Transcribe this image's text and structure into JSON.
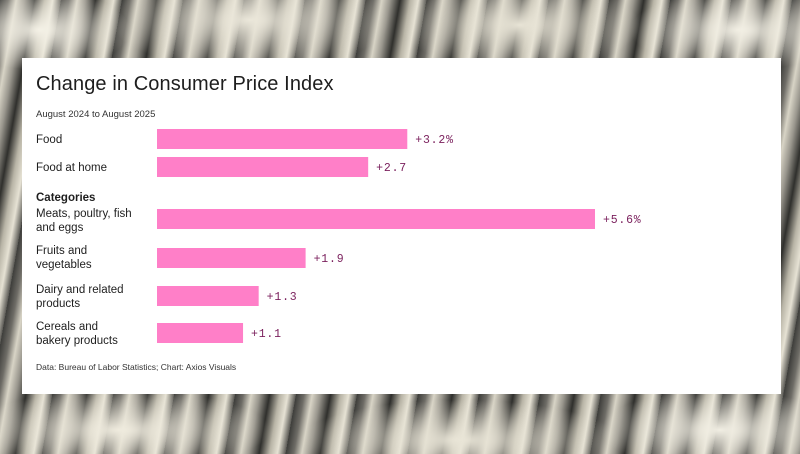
{
  "title": "Change in Consumer Price Index",
  "subtitle": "August 2024 to August 2025",
  "section_label": "Categories",
  "source": "Data: Bureau of Labor Statistics; Chart: Axios Visuals",
  "colors": {
    "bar": "#ff7fc8",
    "value_text": "#7a1f5c"
  },
  "chart_data": {
    "type": "bar",
    "orientation": "horizontal",
    "title": "Change in Consumer Price Index",
    "subtitle": "August 2024 to August 2025",
    "categories": [
      "Food",
      "Food at home",
      "Meats, poultry, fish and eggs",
      "Fruits and vegetables",
      "Dairy and related products",
      "Cereals and bakery products"
    ],
    "values": [
      3.2,
      2.7,
      5.6,
      1.9,
      1.3,
      1.1
    ],
    "data_labels": [
      "+3.2%",
      "+2.7",
      "+5.6%",
      "+1.9",
      "+1.3",
      "+1.1"
    ],
    "unit": "%",
    "xlim": [
      0,
      5.6
    ],
    "grid": false,
    "legend": "none"
  },
  "rows": [
    {
      "label_lines": [
        "Food"
      ]
    },
    {
      "label_lines": [
        "Food at home"
      ]
    },
    {
      "label_lines": [
        "Meats, poultry, fish",
        "and eggs"
      ]
    },
    {
      "label_lines": [
        "Fruits and",
        "vegetables"
      ]
    },
    {
      "label_lines": [
        "Dairy and related",
        "products"
      ]
    },
    {
      "label_lines": [
        "Cereals and",
        "bakery products"
      ]
    }
  ]
}
